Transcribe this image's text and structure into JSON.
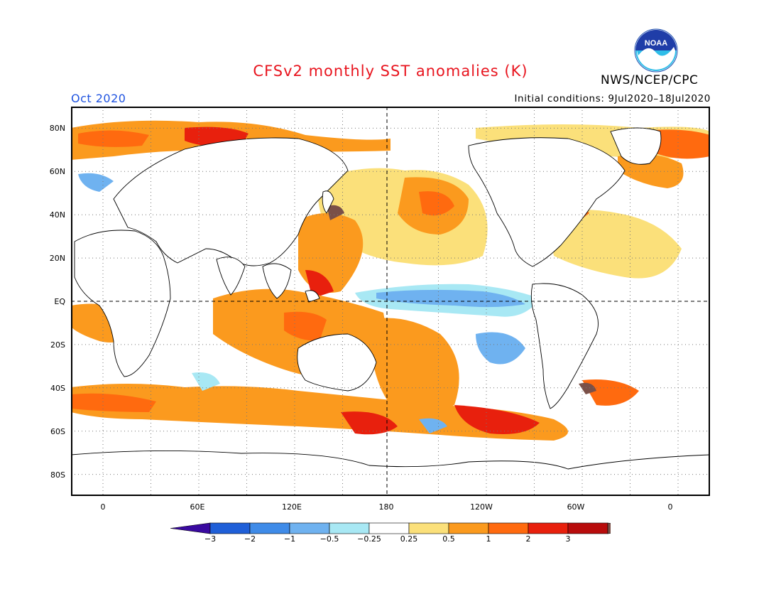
{
  "header": {
    "title": "CFSv2 monthly SST anomalies (K)",
    "agency": "NWS/NCEP/CPC",
    "logo_text": "NOAA",
    "month": "Oct 2020",
    "initial_conditions": "Initial conditions: 9Jul2020–18Jul2020"
  },
  "map": {
    "projection": "cylindrical equidistant",
    "lon_range": [
      -20,
      380
    ],
    "lat_range": [
      -90,
      90
    ],
    "lat_labels": [
      "80N",
      "60N",
      "40N",
      "20N",
      "EQ",
      "20S",
      "40S",
      "60S",
      "80S"
    ],
    "lon_labels": [
      "0",
      "60E",
      "120E",
      "180",
      "120W",
      "60W",
      "0"
    ],
    "grid": "dotted every 30 degrees, dashed equator and dateline"
  },
  "colorbar": {
    "labels": [
      "−3",
      "−2",
      "−1",
      "−0.5",
      "−0.25",
      "0.25",
      "0.5",
      "1",
      "2",
      "3"
    ],
    "colors": [
      "#3a0aa0",
      "#1f5fd8",
      "#3f8be8",
      "#6fb2f0",
      "#a8e8f4",
      "#ffffff",
      "#fbe07a",
      "#fb9a1e",
      "#ff6a0f",
      "#e8200d",
      "#b80c0c",
      "#7a5048"
    ]
  }
}
